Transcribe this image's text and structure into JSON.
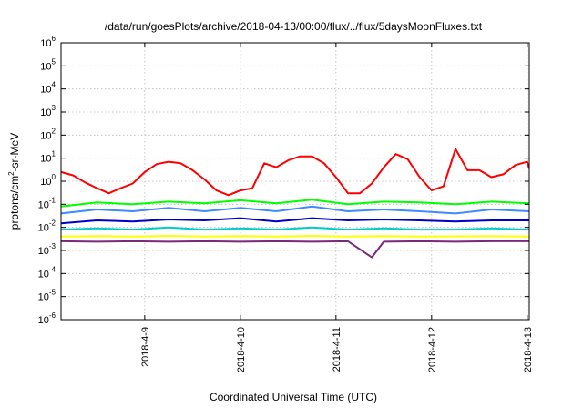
{
  "chart_data": {
    "type": "line",
    "title": "/data/run/goesPlots/archive/2018-04-13/00:00/flux/../flux/5daysMoonFluxes.txt",
    "xlabel": "Coordinated Universal Time (UTC)",
    "ylabel": "protons/cm2-sr-MeV",
    "ylabel_parts": {
      "before": "protons/cm",
      "sup": "2",
      "after": "-sr-MeV"
    },
    "y_scale": "log",
    "ylim": [
      1e-06,
      1000000.0
    ],
    "y_ticks": [
      {
        "value": 1e-06,
        "base": "10",
        "exp": "-6"
      },
      {
        "value": 1e-05,
        "base": "10",
        "exp": "-5"
      },
      {
        "value": 0.0001,
        "base": "10",
        "exp": "-4"
      },
      {
        "value": 0.001,
        "base": "10",
        "exp": "-3"
      },
      {
        "value": 0.01,
        "base": "10",
        "exp": "-2"
      },
      {
        "value": 0.1,
        "base": "10",
        "exp": "-1"
      },
      {
        "value": 1,
        "base": "10",
        "exp": "0"
      },
      {
        "value": 10,
        "base": "10",
        "exp": "1"
      },
      {
        "value": 100,
        "base": "10",
        "exp": "2"
      },
      {
        "value": 1000,
        "base": "10",
        "exp": "3"
      },
      {
        "value": 10000,
        "base": "10",
        "exp": "4"
      },
      {
        "value": 100000,
        "base": "10",
        "exp": "5"
      },
      {
        "value": 1000000,
        "base": "10",
        "exp": "6"
      }
    ],
    "xlim": [
      "2018-04-08 03:00",
      "2018-04-13 00:30"
    ],
    "x_ticks": [
      "2018-4-9",
      "2018-4-10",
      "2018-4-11",
      "2018-4-12",
      "2018-4-13"
    ],
    "grid": true,
    "legend": false,
    "series": [
      {
        "color": "#ff0000",
        "values": [
          {
            "x": "2018-04-08 03:00",
            "y": 2.5
          },
          {
            "x": "2018-04-08 06:00",
            "y": 1.8
          },
          {
            "x": "2018-04-08 09:00",
            "y": 0.9
          },
          {
            "x": "2018-04-08 12:00",
            "y": 0.5
          },
          {
            "x": "2018-04-08 15:00",
            "y": 0.3
          },
          {
            "x": "2018-04-08 18:00",
            "y": 0.5
          },
          {
            "x": "2018-04-08 21:00",
            "y": 0.8
          },
          {
            "x": "2018-04-09 00:00",
            "y": 2.5
          },
          {
            "x": "2018-04-09 03:00",
            "y": 5.5
          },
          {
            "x": "2018-04-09 06:00",
            "y": 7
          },
          {
            "x": "2018-04-09 09:00",
            "y": 6
          },
          {
            "x": "2018-04-09 12:00",
            "y": 3
          },
          {
            "x": "2018-04-09 15:00",
            "y": 1.2
          },
          {
            "x": "2018-04-09 18:00",
            "y": 0.4
          },
          {
            "x": "2018-04-09 21:00",
            "y": 0.25
          },
          {
            "x": "2018-04-10 00:00",
            "y": 0.4
          },
          {
            "x": "2018-04-10 03:00",
            "y": 0.5
          },
          {
            "x": "2018-04-10 06:00",
            "y": 6
          },
          {
            "x": "2018-04-10 09:00",
            "y": 4
          },
          {
            "x": "2018-04-10 12:00",
            "y": 8
          },
          {
            "x": "2018-04-10 15:00",
            "y": 12
          },
          {
            "x": "2018-04-10 18:00",
            "y": 12
          },
          {
            "x": "2018-04-10 21:00",
            "y": 6
          },
          {
            "x": "2018-04-11 00:00",
            "y": 1.5
          },
          {
            "x": "2018-04-11 03:00",
            "y": 0.3
          },
          {
            "x": "2018-04-11 06:00",
            "y": 0.3
          },
          {
            "x": "2018-04-11 09:00",
            "y": 0.8
          },
          {
            "x": "2018-04-11 12:00",
            "y": 4
          },
          {
            "x": "2018-04-11 15:00",
            "y": 15
          },
          {
            "x": "2018-04-11 18:00",
            "y": 9
          },
          {
            "x": "2018-04-11 21:00",
            "y": 1.5
          },
          {
            "x": "2018-04-12 00:00",
            "y": 0.4
          },
          {
            "x": "2018-04-12 03:00",
            "y": 0.6
          },
          {
            "x": "2018-04-12 06:00",
            "y": 25
          },
          {
            "x": "2018-04-12 09:00",
            "y": 3
          },
          {
            "x": "2018-04-12 12:00",
            "y": 3
          },
          {
            "x": "2018-04-12 15:00",
            "y": 1.5
          },
          {
            "x": "2018-04-12 18:00",
            "y": 2
          },
          {
            "x": "2018-04-12 21:00",
            "y": 5
          },
          {
            "x": "2018-04-13 00:00",
            "y": 7
          },
          {
            "x": "2018-04-13 00:30",
            "y": 3.5
          }
        ]
      },
      {
        "color": "#00ff00",
        "values": [
          {
            "x": "2018-04-08 03:00",
            "y": 0.08
          },
          {
            "x": "2018-04-08 12:00",
            "y": 0.12
          },
          {
            "x": "2018-04-08 21:00",
            "y": 0.1
          },
          {
            "x": "2018-04-09 06:00",
            "y": 0.13
          },
          {
            "x": "2018-04-09 15:00",
            "y": 0.11
          },
          {
            "x": "2018-04-10 00:00",
            "y": 0.15
          },
          {
            "x": "2018-04-10 09:00",
            "y": 0.11
          },
          {
            "x": "2018-04-10 18:00",
            "y": 0.16
          },
          {
            "x": "2018-04-11 03:00",
            "y": 0.1
          },
          {
            "x": "2018-04-11 12:00",
            "y": 0.13
          },
          {
            "x": "2018-04-11 21:00",
            "y": 0.12
          },
          {
            "x": "2018-04-12 06:00",
            "y": 0.1
          },
          {
            "x": "2018-04-12 15:00",
            "y": 0.13
          },
          {
            "x": "2018-04-13 00:30",
            "y": 0.11
          }
        ]
      },
      {
        "color": "#3b8cff",
        "values": [
          {
            "x": "2018-04-08 03:00",
            "y": 0.04
          },
          {
            "x": "2018-04-08 12:00",
            "y": 0.06
          },
          {
            "x": "2018-04-08 21:00",
            "y": 0.05
          },
          {
            "x": "2018-04-09 06:00",
            "y": 0.07
          },
          {
            "x": "2018-04-09 15:00",
            "y": 0.05
          },
          {
            "x": "2018-04-10 00:00",
            "y": 0.07
          },
          {
            "x": "2018-04-10 09:00",
            "y": 0.05
          },
          {
            "x": "2018-04-10 18:00",
            "y": 0.08
          },
          {
            "x": "2018-04-11 03:00",
            "y": 0.05
          },
          {
            "x": "2018-04-11 12:00",
            "y": 0.06
          },
          {
            "x": "2018-04-11 21:00",
            "y": 0.05
          },
          {
            "x": "2018-04-12 06:00",
            "y": 0.04
          },
          {
            "x": "2018-04-12 15:00",
            "y": 0.06
          },
          {
            "x": "2018-04-13 00:30",
            "y": 0.05
          }
        ]
      },
      {
        "color": "#0000cc",
        "values": [
          {
            "x": "2018-04-08 03:00",
            "y": 0.015
          },
          {
            "x": "2018-04-08 12:00",
            "y": 0.02
          },
          {
            "x": "2018-04-08 21:00",
            "y": 0.018
          },
          {
            "x": "2018-04-09 06:00",
            "y": 0.022
          },
          {
            "x": "2018-04-09 15:00",
            "y": 0.02
          },
          {
            "x": "2018-04-10 00:00",
            "y": 0.025
          },
          {
            "x": "2018-04-10 09:00",
            "y": 0.018
          },
          {
            "x": "2018-04-10 18:00",
            "y": 0.025
          },
          {
            "x": "2018-04-11 03:00",
            "y": 0.02
          },
          {
            "x": "2018-04-11 12:00",
            "y": 0.022
          },
          {
            "x": "2018-04-11 21:00",
            "y": 0.02
          },
          {
            "x": "2018-04-12 06:00",
            "y": 0.018
          },
          {
            "x": "2018-04-12 15:00",
            "y": 0.02
          },
          {
            "x": "2018-04-13 00:30",
            "y": 0.02
          }
        ]
      },
      {
        "color": "#00cccc",
        "values": [
          {
            "x": "2018-04-08 03:00",
            "y": 0.008
          },
          {
            "x": "2018-04-08 12:00",
            "y": 0.009
          },
          {
            "x": "2018-04-08 21:00",
            "y": 0.008
          },
          {
            "x": "2018-04-09 06:00",
            "y": 0.01
          },
          {
            "x": "2018-04-09 15:00",
            "y": 0.008
          },
          {
            "x": "2018-04-10 00:00",
            "y": 0.009
          },
          {
            "x": "2018-04-10 09:00",
            "y": 0.008
          },
          {
            "x": "2018-04-10 18:00",
            "y": 0.01
          },
          {
            "x": "2018-04-11 03:00",
            "y": 0.008
          },
          {
            "x": "2018-04-11 12:00",
            "y": 0.009
          },
          {
            "x": "2018-04-11 21:00",
            "y": 0.008
          },
          {
            "x": "2018-04-12 06:00",
            "y": 0.008
          },
          {
            "x": "2018-04-12 15:00",
            "y": 0.009
          },
          {
            "x": "2018-04-13 00:30",
            "y": 0.008
          }
        ]
      },
      {
        "color": "#ffff00",
        "values": [
          {
            "x": "2018-04-08 03:00",
            "y": 0.004
          },
          {
            "x": "2018-04-08 12:00",
            "y": 0.0042
          },
          {
            "x": "2018-04-08 21:00",
            "y": 0.004
          },
          {
            "x": "2018-04-09 06:00",
            "y": 0.0043
          },
          {
            "x": "2018-04-09 15:00",
            "y": 0.004
          },
          {
            "x": "2018-04-10 00:00",
            "y": 0.0042
          },
          {
            "x": "2018-04-10 09:00",
            "y": 0.004
          },
          {
            "x": "2018-04-10 18:00",
            "y": 0.0043
          },
          {
            "x": "2018-04-11 03:00",
            "y": 0.004
          },
          {
            "x": "2018-04-11 12:00",
            "y": 0.0042
          },
          {
            "x": "2018-04-11 21:00",
            "y": 0.004
          },
          {
            "x": "2018-04-12 06:00",
            "y": 0.0041
          },
          {
            "x": "2018-04-12 15:00",
            "y": 0.0042
          },
          {
            "x": "2018-04-13 00:30",
            "y": 0.004
          }
        ]
      },
      {
        "color": "#7a2a7a",
        "values": [
          {
            "x": "2018-04-08 03:00",
            "y": 0.0025
          },
          {
            "x": "2018-04-08 12:00",
            "y": 0.0024
          },
          {
            "x": "2018-04-08 21:00",
            "y": 0.0025
          },
          {
            "x": "2018-04-09 06:00",
            "y": 0.0024
          },
          {
            "x": "2018-04-09 15:00",
            "y": 0.0025
          },
          {
            "x": "2018-04-10 00:00",
            "y": 0.0024
          },
          {
            "x": "2018-04-10 09:00",
            "y": 0.0025
          },
          {
            "x": "2018-04-10 18:00",
            "y": 0.0024
          },
          {
            "x": "2018-04-11 03:00",
            "y": 0.0025
          },
          {
            "x": "2018-04-11 09:00",
            "y": 0.0005
          },
          {
            "x": "2018-04-11 12:00",
            "y": 0.0024
          },
          {
            "x": "2018-04-11 21:00",
            "y": 0.0025
          },
          {
            "x": "2018-04-12 06:00",
            "y": 0.0024
          },
          {
            "x": "2018-04-12 15:00",
            "y": 0.0025
          },
          {
            "x": "2018-04-13 00:30",
            "y": 0.0025
          }
        ]
      }
    ]
  }
}
